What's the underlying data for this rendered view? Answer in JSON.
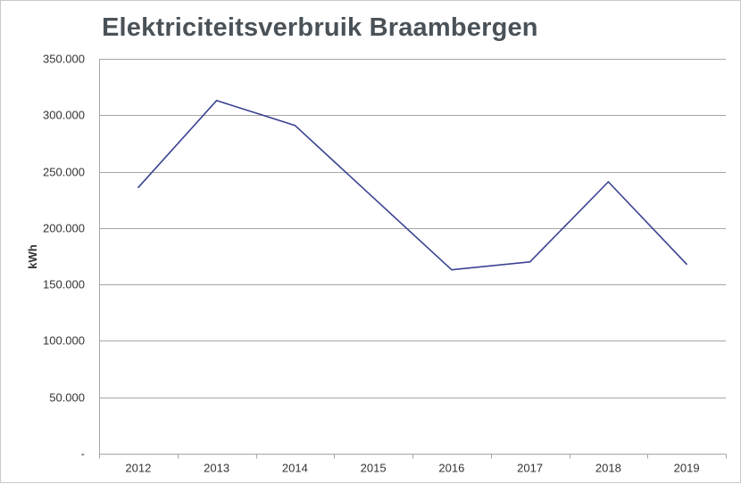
{
  "chart_data": {
    "type": "line",
    "title": "Elektriciteitsverbruik Braambergen",
    "xlabel": "",
    "ylabel": "kWh",
    "categories": [
      "2012",
      "2013",
      "2014",
      "2015",
      "2016",
      "2017",
      "2018",
      "2019"
    ],
    "series": [
      {
        "values": [
          236000,
          313000,
          291000,
          227000,
          163000,
          170000,
          241000,
          168000
        ]
      }
    ],
    "ylim": [
      0,
      350000
    ],
    "yticks": [
      0,
      50000,
      100000,
      150000,
      200000,
      250000,
      300000,
      350000
    ],
    "ytick_labels": [
      "-",
      "50.000",
      "100.000",
      "150.000",
      "200.000",
      "250.000",
      "300.000",
      "350.000"
    ],
    "grid": true,
    "legend": "none",
    "colors": {
      "line": "#3b4291",
      "grid": "#a6a6a6",
      "title": "#4a5258"
    }
  }
}
